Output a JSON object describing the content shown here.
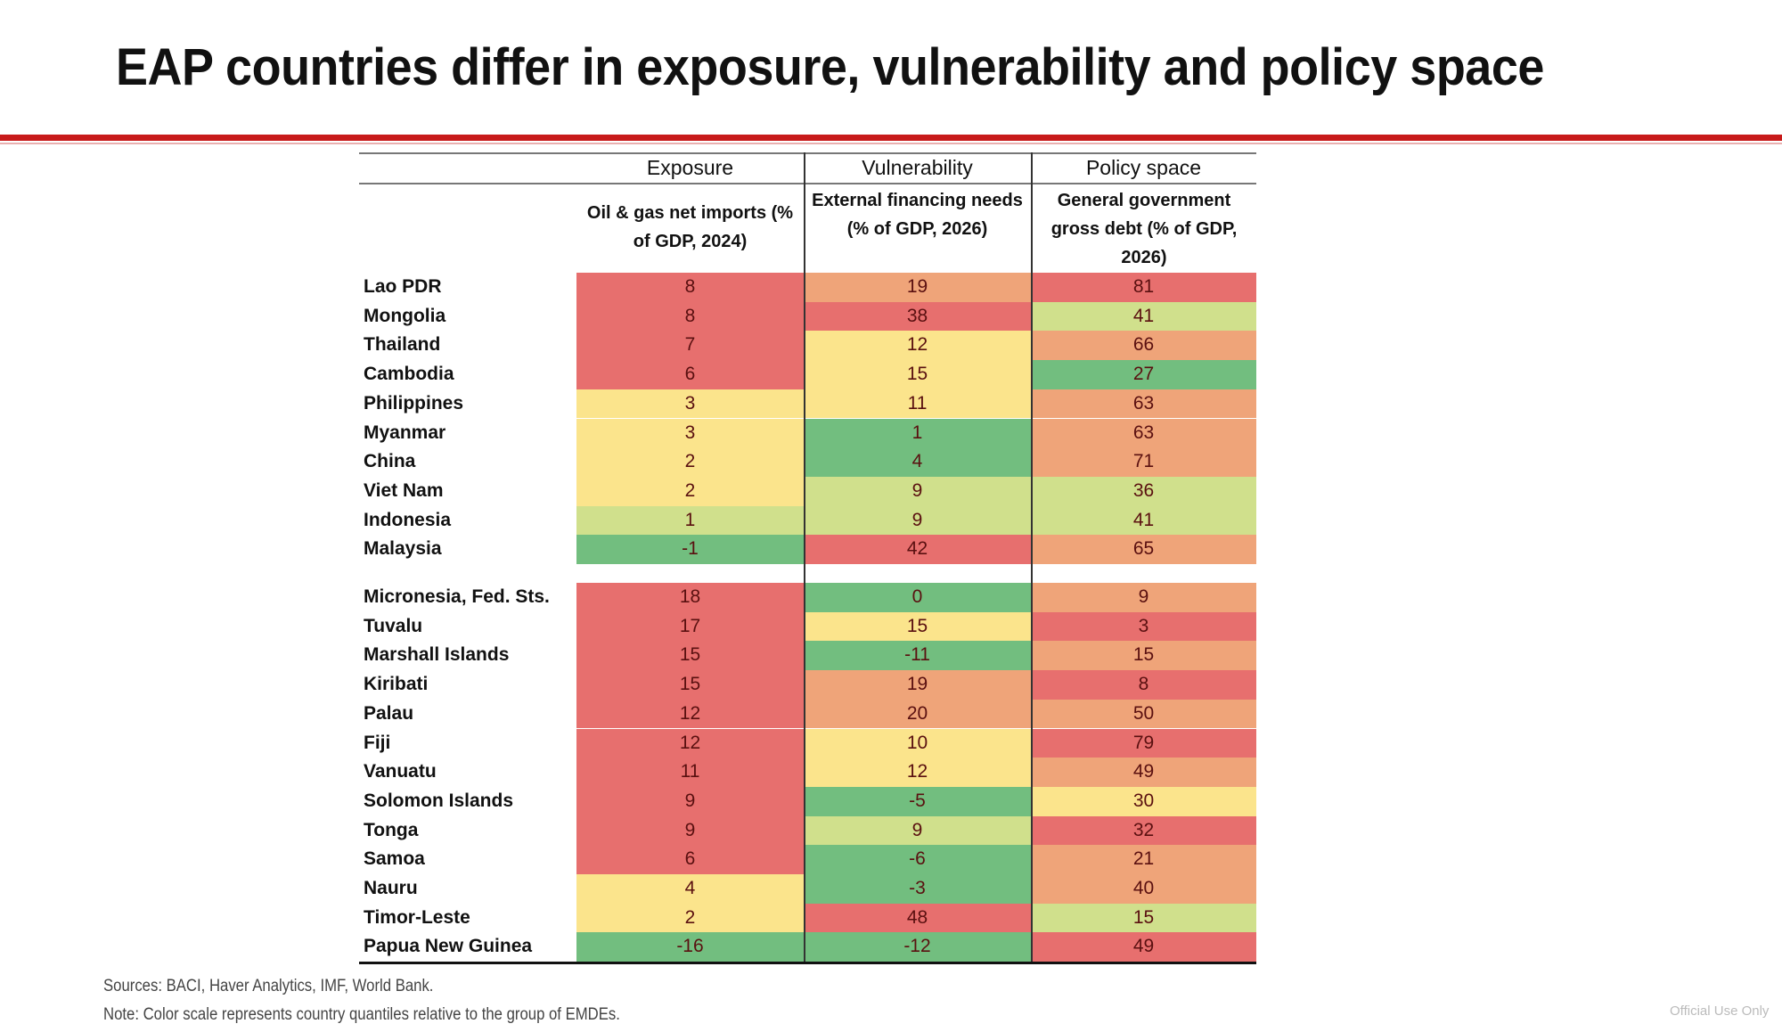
{
  "title": "EAP countries differ in exposure, vulnerability and policy space",
  "palette": {
    "red": "#e76f6e",
    "orange": "#efa479",
    "yellow": "#fbe48c",
    "lightgreen": "#d0e08c",
    "green": "#72be7f"
  },
  "columns": [
    {
      "group": "Exposure",
      "label": "Oil & gas net imports (% of GDP, 2024)"
    },
    {
      "group": "Vulnerability",
      "label": "External financing needs (% of GDP, 2026)"
    },
    {
      "group": "Policy space",
      "label": "General government gross debt (% of GDP, 2026)"
    }
  ],
  "groups": [
    [
      {
        "country": "Lao PDR",
        "values": [
          "8",
          "19",
          "81"
        ],
        "colors": [
          "red",
          "orange",
          "red"
        ]
      },
      {
        "country": "Mongolia",
        "values": [
          "8",
          "38",
          "41"
        ],
        "colors": [
          "red",
          "red",
          "lightgreen"
        ]
      },
      {
        "country": "Thailand",
        "values": [
          "7",
          "12",
          "66"
        ],
        "colors": [
          "red",
          "yellow",
          "orange"
        ]
      },
      {
        "country": "Cambodia",
        "values": [
          "6",
          "15",
          "27"
        ],
        "colors": [
          "red",
          "yellow",
          "green"
        ]
      },
      {
        "country": "Philippines",
        "values": [
          "3",
          "11",
          "63"
        ],
        "colors": [
          "yellow",
          "yellow",
          "orange"
        ]
      },
      {
        "country": "Myanmar",
        "values": [
          "3",
          "1",
          "63"
        ],
        "colors": [
          "yellow",
          "green",
          "orange"
        ]
      },
      {
        "country": "China",
        "values": [
          "2",
          "4",
          "71"
        ],
        "colors": [
          "yellow",
          "green",
          "orange"
        ]
      },
      {
        "country": "Viet Nam",
        "values": [
          "2",
          "9",
          "36"
        ],
        "colors": [
          "yellow",
          "lightgreen",
          "lightgreen"
        ]
      },
      {
        "country": "Indonesia",
        "values": [
          "1",
          "9",
          "41"
        ],
        "colors": [
          "lightgreen",
          "lightgreen",
          "lightgreen"
        ]
      },
      {
        "country": "Malaysia",
        "values": [
          "-1",
          "42",
          "65"
        ],
        "colors": [
          "green",
          "red",
          "orange"
        ]
      }
    ],
    [
      {
        "country": "Micronesia, Fed. Sts.",
        "values": [
          "18",
          "0",
          "9"
        ],
        "colors": [
          "red",
          "green",
          "orange"
        ]
      },
      {
        "country": "Tuvalu",
        "values": [
          "17",
          "15",
          "3"
        ],
        "colors": [
          "red",
          "yellow",
          "red"
        ]
      },
      {
        "country": "Marshall Islands",
        "values": [
          "15",
          "-11",
          "15"
        ],
        "colors": [
          "red",
          "green",
          "orange"
        ]
      },
      {
        "country": "Kiribati",
        "values": [
          "15",
          "19",
          "8"
        ],
        "colors": [
          "red",
          "orange",
          "red"
        ]
      },
      {
        "country": "Palau",
        "values": [
          "12",
          "20",
          "50"
        ],
        "colors": [
          "red",
          "orange",
          "orange"
        ]
      },
      {
        "country": "Fiji",
        "values": [
          "12",
          "10",
          "79"
        ],
        "colors": [
          "red",
          "yellow",
          "red"
        ]
      },
      {
        "country": "Vanuatu",
        "values": [
          "11",
          "12",
          "49"
        ],
        "colors": [
          "red",
          "yellow",
          "orange"
        ]
      },
      {
        "country": "Solomon Islands",
        "values": [
          "9",
          "-5",
          "30"
        ],
        "colors": [
          "red",
          "green",
          "yellow"
        ]
      },
      {
        "country": "Tonga",
        "values": [
          "9",
          "9",
          "32"
        ],
        "colors": [
          "red",
          "lightgreen",
          "red"
        ]
      },
      {
        "country": "Samoa",
        "values": [
          "6",
          "-6",
          "21"
        ],
        "colors": [
          "red",
          "green",
          "orange"
        ]
      },
      {
        "country": "Nauru",
        "values": [
          "4",
          "-3",
          "40"
        ],
        "colors": [
          "yellow",
          "green",
          "orange"
        ]
      },
      {
        "country": "Timor-Leste",
        "values": [
          "2",
          "48",
          "15"
        ],
        "colors": [
          "yellow",
          "red",
          "lightgreen"
        ]
      },
      {
        "country": "Papua New Guinea",
        "values": [
          "-16",
          "-12",
          "49"
        ],
        "colors": [
          "green",
          "green",
          "red"
        ]
      }
    ]
  ],
  "sources": "Sources: BACI, Haver Analytics, IMF, World Bank.",
  "note": "Note: Color scale represents country quantiles relative to the group of EMDEs.",
  "classification": "Official Use Only"
}
